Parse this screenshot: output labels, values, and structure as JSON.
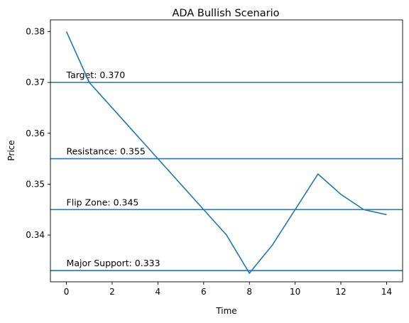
{
  "chart_data": {
    "type": "line",
    "title": "ADA Bullish Scenario",
    "xlabel": "Time",
    "ylabel": "Price",
    "xlim": [
      -0.7,
      14.7
    ],
    "ylim": [
      0.3308,
      0.3823
    ],
    "xticks": [
      0,
      2,
      4,
      6,
      8,
      10,
      12,
      14
    ],
    "xtick_labels": [
      "0",
      "2",
      "4",
      "6",
      "8",
      "10",
      "12",
      "14"
    ],
    "yticks": [
      0.34,
      0.35,
      0.36,
      0.37,
      0.38
    ],
    "ytick_labels": [
      "0.34",
      "0.35",
      "0.36",
      "0.37",
      "0.38"
    ],
    "grid": false,
    "color": "#1f77b4",
    "series": [
      {
        "x": [
          0,
          1,
          2,
          3,
          4,
          5,
          6,
          7,
          8,
          9,
          10,
          11,
          12,
          13,
          14
        ],
        "values": [
          0.38,
          0.37,
          0.365,
          0.36,
          0.355,
          0.35,
          0.345,
          0.34,
          0.3325,
          0.338,
          0.345,
          0.352,
          0.348,
          0.345,
          0.344
        ]
      }
    ],
    "levels": [
      {
        "value": 0.37,
        "label": "Target: 0.370"
      },
      {
        "value": 0.355,
        "label": "Resistance: 0.355"
      },
      {
        "value": 0.345,
        "label": "Flip Zone: 0.345"
      },
      {
        "value": 0.333,
        "label": "Major Support: 0.333"
      }
    ]
  }
}
